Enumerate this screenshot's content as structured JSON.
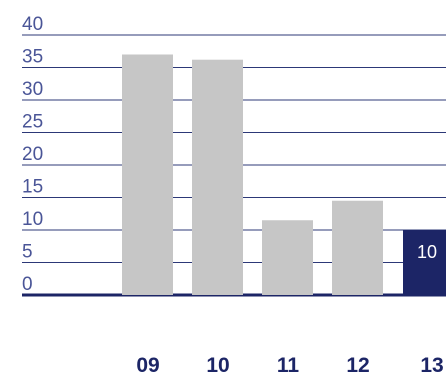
{
  "chart_data": {
    "type": "bar",
    "title": "",
    "xlabel": "",
    "ylabel": "",
    "categories": [
      "09",
      "10",
      "11",
      "12",
      "13"
    ],
    "values": [
      37,
      36.2,
      11.5,
      14.5,
      10
    ],
    "data_labels": [
      "",
      "",
      "",
      "",
      "10"
    ],
    "ylim": [
      0,
      40
    ],
    "yticks": [
      "0",
      "5",
      "10",
      "15",
      "20",
      "25",
      "30",
      "35",
      "40"
    ],
    "grid": true,
    "legend": "none",
    "colors": {
      "bar": "#c6c6c6",
      "highlight_bar": "#1c2566",
      "axis_text": "#4a5597",
      "category_text": "#1c2566",
      "gridline": "#2c3877",
      "baseline": "#1c2566",
      "data_label": "#ffffff"
    },
    "highlight_index": 4
  }
}
